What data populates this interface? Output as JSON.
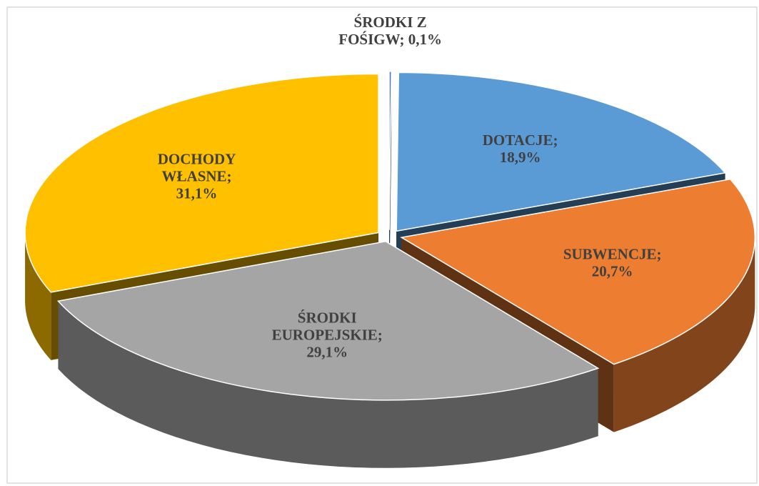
{
  "chart_data": {
    "type": "pie",
    "values": [
      0.1,
      18.9,
      20.7,
      29.1,
      31.1
    ],
    "value_labels": [
      "ŚRODKI Z\nFOŚIGW; 0,1%",
      "DOTACJE;\n18,9%",
      "SUBWENCJE;\n20,7%",
      "ŚRODKI\nEUROPEJSKIE;\n29,1%",
      "DOCHODY\nWŁASNE;\n31,1%"
    ],
    "colors": [
      "#4472c4",
      "#5b9bd5",
      "#ed7d31",
      "#a5a5a5",
      "#ffc000"
    ]
  }
}
